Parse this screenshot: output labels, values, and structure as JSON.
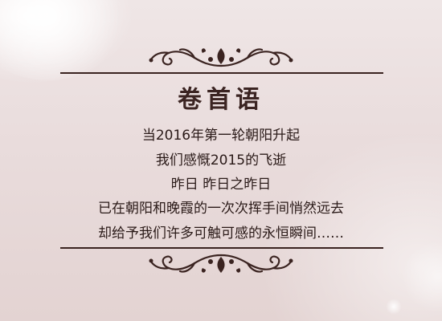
{
  "title": "卷首语",
  "lines": [
    "当2016年第一轮朝阳升起",
    "我们感慨2015的飞逝",
    "昨日  昨日之昨日",
    "已在朝阳和晚霞的一次次挥手间悄然远去",
    "却给予我们许多可触可感的永恒瞬间……"
  ],
  "colors": {
    "background": "#e9dcdc",
    "ink": "#3a2320",
    "text": "#2a1a18"
  }
}
